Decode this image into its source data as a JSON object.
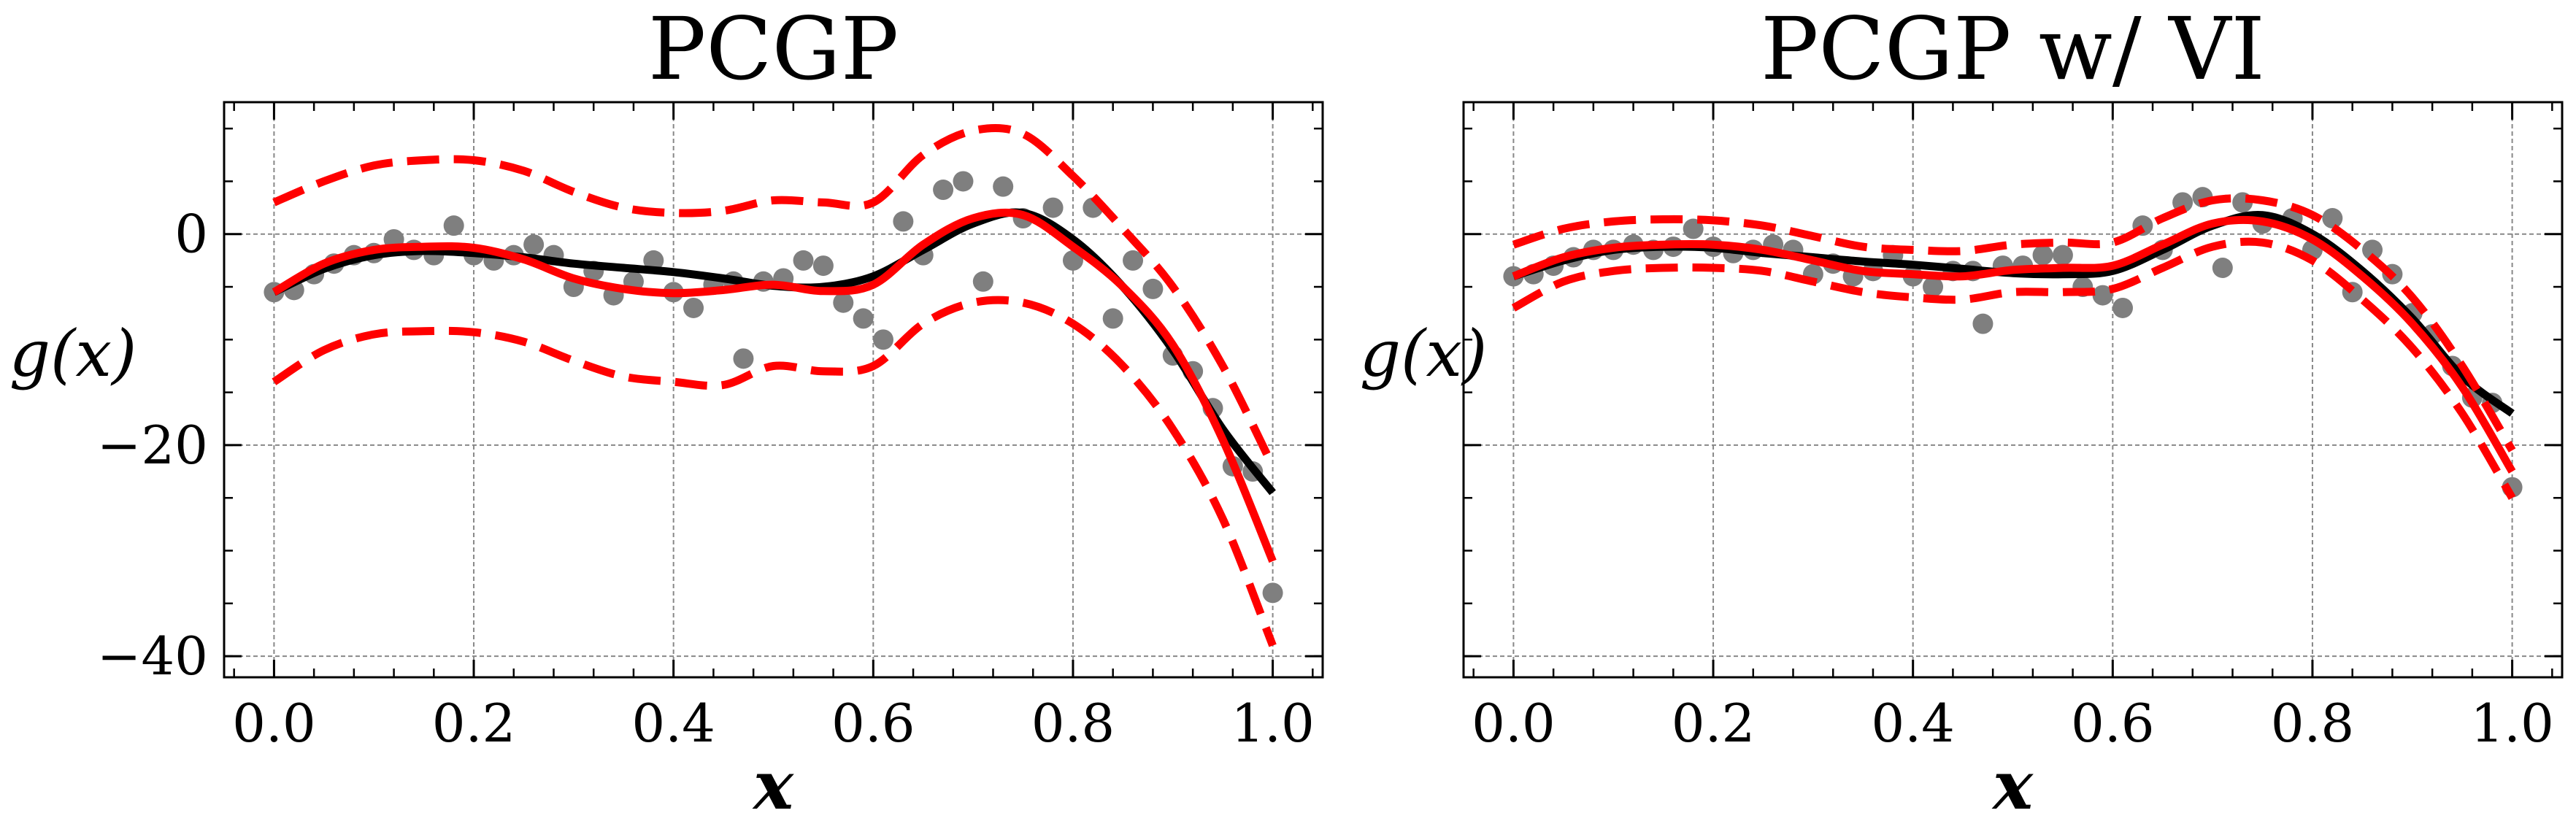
{
  "figure": {
    "colors": {
      "truth": "#000000",
      "mean": "#ff0000",
      "band": "#ff0000",
      "points": "#7f7f7f",
      "grid": "#888888"
    }
  },
  "chart_data": [
    {
      "type": "line",
      "title": "PCGP",
      "xlabel": "x",
      "ylabel": "g(x)",
      "xlim": [
        -0.05,
        1.05
      ],
      "ylim": [
        -42,
        12.5
      ],
      "xticks": [
        0.0,
        0.2,
        0.4,
        0.6,
        0.8,
        1.0
      ],
      "xtick_labels": [
        "0.0",
        "0.2",
        "0.4",
        "0.6",
        "0.8",
        "1.0"
      ],
      "yticks": [
        0,
        -20,
        -40
      ],
      "ytick_labels": [
        "0",
        "−20",
        "−40"
      ],
      "grid": true,
      "series": [
        {
          "role": "truth",
          "style": "solid-black",
          "x": [
            0.0,
            0.05,
            0.1,
            0.15,
            0.2,
            0.25,
            0.3,
            0.35,
            0.4,
            0.45,
            0.5,
            0.55,
            0.6,
            0.65,
            0.7,
            0.75,
            0.8,
            0.85,
            0.9,
            0.95,
            1.0
          ],
          "y": [
            -5.5,
            -3.3,
            -2.0,
            -1.6,
            -1.8,
            -2.2,
            -2.8,
            -3.2,
            -3.6,
            -4.2,
            -4.9,
            -5.0,
            -4.0,
            -1.5,
            1.0,
            2.0,
            -0.5,
            -5.0,
            -11.0,
            -18.5,
            -24.5
          ]
        },
        {
          "role": "mean",
          "style": "solid-red",
          "x": [
            0.0,
            0.05,
            0.1,
            0.15,
            0.2,
            0.25,
            0.3,
            0.35,
            0.4,
            0.45,
            0.5,
            0.55,
            0.6,
            0.65,
            0.7,
            0.75,
            0.8,
            0.85,
            0.9,
            0.95,
            1.0
          ],
          "y": [
            -5.5,
            -2.8,
            -1.5,
            -1.2,
            -1.3,
            -2.4,
            -4.2,
            -5.2,
            -5.6,
            -5.3,
            -4.8,
            -5.4,
            -4.8,
            -1.0,
            1.5,
            1.8,
            -1.2,
            -5.0,
            -10.5,
            -19.5,
            -31.0
          ]
        },
        {
          "role": "upper",
          "style": "dashed-red",
          "x": [
            0.0,
            0.05,
            0.1,
            0.15,
            0.2,
            0.25,
            0.3,
            0.35,
            0.4,
            0.45,
            0.5,
            0.55,
            0.6,
            0.65,
            0.7,
            0.75,
            0.8,
            0.85,
            0.9,
            0.95,
            1.0
          ],
          "y": [
            3.0,
            5.0,
            6.5,
            7.0,
            7.0,
            6.0,
            4.0,
            2.5,
            2.0,
            2.2,
            3.2,
            3.0,
            3.0,
            7.5,
            9.8,
            9.5,
            5.5,
            0.5,
            -5.0,
            -12.5,
            -22.0
          ]
        },
        {
          "role": "lower",
          "style": "dashed-red",
          "x": [
            0.0,
            0.05,
            0.1,
            0.15,
            0.2,
            0.25,
            0.3,
            0.35,
            0.4,
            0.45,
            0.5,
            0.55,
            0.6,
            0.65,
            0.7,
            0.75,
            0.8,
            0.85,
            0.9,
            0.95,
            1.0
          ],
          "y": [
            -14.0,
            -11.0,
            -9.5,
            -9.2,
            -9.3,
            -10.2,
            -12.0,
            -13.5,
            -14.0,
            -14.3,
            -12.5,
            -13.0,
            -12.5,
            -8.5,
            -6.5,
            -6.5,
            -8.5,
            -12.5,
            -18.5,
            -27.0,
            -39.0
          ]
        },
        {
          "role": "observations",
          "style": "scatter-gray",
          "x": [
            0.0,
            0.02,
            0.04,
            0.06,
            0.08,
            0.1,
            0.12,
            0.14,
            0.16,
            0.18,
            0.2,
            0.22,
            0.24,
            0.26,
            0.28,
            0.3,
            0.32,
            0.34,
            0.36,
            0.38,
            0.4,
            0.42,
            0.44,
            0.46,
            0.47,
            0.49,
            0.51,
            0.53,
            0.55,
            0.57,
            0.59,
            0.61,
            0.63,
            0.65,
            0.67,
            0.69,
            0.71,
            0.73,
            0.75,
            0.78,
            0.8,
            0.82,
            0.84,
            0.86,
            0.88,
            0.9,
            0.92,
            0.94,
            0.96,
            0.98,
            1.0
          ],
          "y": [
            -5.5,
            -5.3,
            -3.8,
            -2.8,
            -2.0,
            -1.8,
            -0.5,
            -1.5,
            -2.0,
            0.8,
            -2.0,
            -2.5,
            -2.0,
            -1.0,
            -2.0,
            -5.0,
            -3.5,
            -5.8,
            -4.5,
            -2.5,
            -5.5,
            -7.0,
            -4.8,
            -4.5,
            -11.8,
            -4.5,
            -4.2,
            -2.5,
            -3.0,
            -6.5,
            -8.0,
            -10.0,
            1.2,
            -2.0,
            4.2,
            5.0,
            -4.5,
            4.5,
            1.5,
            2.5,
            -2.5,
            2.5,
            -8.0,
            -2.5,
            -5.2,
            -11.5,
            -13.0,
            -16.5,
            -22.0,
            -22.5,
            -34.0
          ]
        }
      ]
    },
    {
      "type": "line",
      "title": "PCGP w/ VI",
      "xlabel": "x",
      "ylabel": "g(x)",
      "xlim": [
        -0.05,
        1.05
      ],
      "ylim": [
        -42,
        12.5
      ],
      "xticks": [
        0.0,
        0.2,
        0.4,
        0.6,
        0.8,
        1.0
      ],
      "xtick_labels": [
        "0.0",
        "0.2",
        "0.4",
        "0.6",
        "0.8",
        "1.0"
      ],
      "yticks": [
        0,
        -20,
        -40
      ],
      "ytick_labels": [
        "",
        "",
        ""
      ],
      "grid": true,
      "series": [
        {
          "role": "truth",
          "style": "solid-black",
          "x": [
            0.0,
            0.05,
            0.1,
            0.15,
            0.2,
            0.25,
            0.3,
            0.35,
            0.4,
            0.45,
            0.5,
            0.55,
            0.6,
            0.65,
            0.7,
            0.75,
            0.8,
            0.85,
            0.9,
            0.95,
            1.0
          ],
          "y": [
            -4.0,
            -2.5,
            -1.5,
            -1.2,
            -1.3,
            -1.8,
            -2.2,
            -2.6,
            -2.9,
            -3.3,
            -3.7,
            -3.8,
            -3.5,
            -1.5,
            0.8,
            1.8,
            0.0,
            -3.5,
            -8.0,
            -13.5,
            -17.0
          ]
        },
        {
          "role": "mean",
          "style": "solid-red",
          "x": [
            0.0,
            0.05,
            0.1,
            0.15,
            0.2,
            0.25,
            0.3,
            0.35,
            0.4,
            0.45,
            0.5,
            0.55,
            0.6,
            0.65,
            0.7,
            0.75,
            0.8,
            0.85,
            0.9,
            0.95,
            1.0
          ],
          "y": [
            -4.0,
            -2.2,
            -1.3,
            -1.0,
            -1.0,
            -1.5,
            -2.5,
            -3.5,
            -3.8,
            -4.0,
            -3.4,
            -3.2,
            -3.0,
            -1.0,
            1.0,
            1.2,
            -0.5,
            -4.0,
            -8.5,
            -14.5,
            -22.5
          ]
        },
        {
          "role": "upper",
          "style": "dashed-red",
          "x": [
            0.0,
            0.05,
            0.1,
            0.15,
            0.2,
            0.25,
            0.3,
            0.35,
            0.4,
            0.45,
            0.5,
            0.55,
            0.6,
            0.65,
            0.7,
            0.75,
            0.8,
            0.85,
            0.9,
            0.95,
            1.0
          ],
          "y": [
            -1.0,
            0.5,
            1.2,
            1.4,
            1.3,
            0.8,
            -0.2,
            -1.2,
            -1.5,
            -1.6,
            -1.0,
            -0.8,
            -0.8,
            1.5,
            3.2,
            3.2,
            1.8,
            -1.5,
            -6.0,
            -12.5,
            -20.5
          ]
        },
        {
          "role": "lower",
          "style": "dashed-red",
          "x": [
            0.0,
            0.05,
            0.1,
            0.15,
            0.2,
            0.25,
            0.3,
            0.35,
            0.4,
            0.45,
            0.5,
            0.55,
            0.6,
            0.65,
            0.7,
            0.75,
            0.8,
            0.85,
            0.9,
            0.95,
            1.0
          ],
          "y": [
            -7.0,
            -4.5,
            -3.5,
            -3.2,
            -3.2,
            -3.5,
            -4.5,
            -5.5,
            -6.0,
            -6.2,
            -5.5,
            -5.5,
            -5.2,
            -3.2,
            -1.2,
            -0.8,
            -2.5,
            -6.2,
            -10.8,
            -17.0,
            -25.0
          ]
        },
        {
          "role": "observations",
          "style": "scatter-gray",
          "x": [
            0.0,
            0.02,
            0.04,
            0.06,
            0.08,
            0.1,
            0.12,
            0.14,
            0.16,
            0.18,
            0.2,
            0.22,
            0.24,
            0.26,
            0.28,
            0.3,
            0.32,
            0.34,
            0.36,
            0.38,
            0.4,
            0.42,
            0.44,
            0.46,
            0.47,
            0.49,
            0.51,
            0.53,
            0.55,
            0.57,
            0.59,
            0.61,
            0.63,
            0.65,
            0.67,
            0.69,
            0.71,
            0.73,
            0.75,
            0.78,
            0.8,
            0.82,
            0.84,
            0.86,
            0.88,
            0.9,
            0.92,
            0.94,
            0.96,
            0.98,
            1.0
          ],
          "y": [
            -4.0,
            -3.8,
            -3.0,
            -2.2,
            -1.5,
            -1.5,
            -1.0,
            -1.5,
            -1.2,
            0.5,
            -1.2,
            -1.8,
            -1.5,
            -1.0,
            -1.5,
            -3.8,
            -2.8,
            -4.0,
            -3.5,
            -2.0,
            -4.0,
            -5.0,
            -3.5,
            -3.5,
            -8.5,
            -3.0,
            -3.0,
            -2.0,
            -2.0,
            -5.0,
            -5.8,
            -7.0,
            0.8,
            -1.5,
            3.0,
            3.5,
            -3.2,
            3.0,
            1.0,
            1.5,
            -1.5,
            1.5,
            -5.5,
            -1.5,
            -3.8,
            -7.5,
            -9.5,
            -12.5,
            -15.5,
            -16.0,
            -24.0
          ]
        }
      ]
    }
  ]
}
